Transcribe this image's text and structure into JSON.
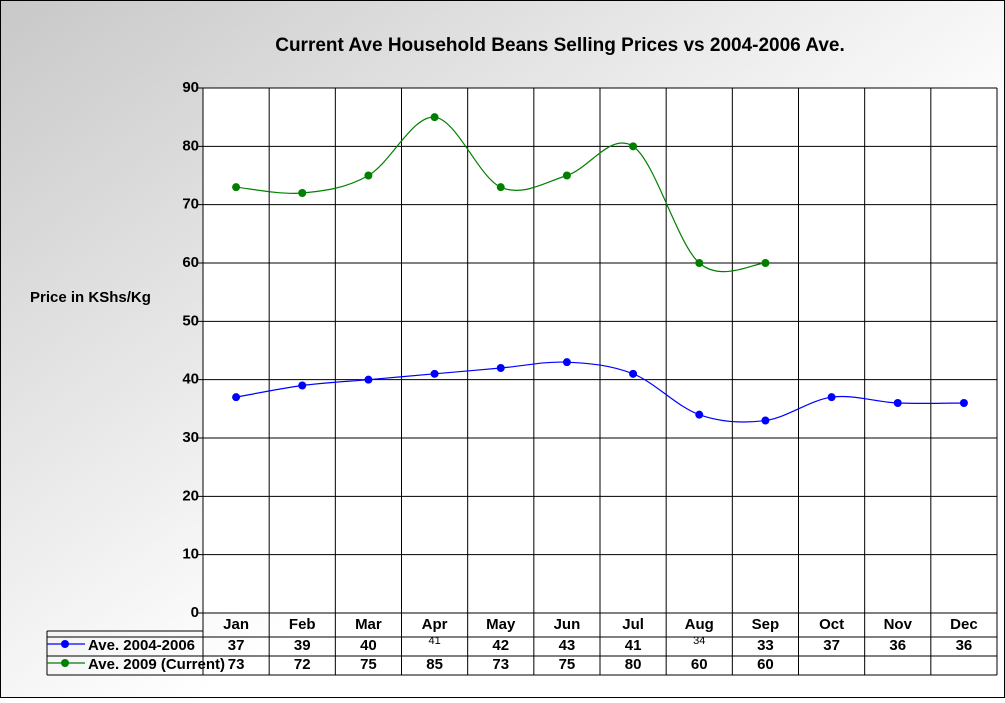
{
  "chart_data": {
    "type": "line",
    "title": "Current Ave Household Beans Selling Prices vs 2004-2006 Ave.",
    "y_label": "Price in KShs/Kg",
    "categories": [
      "Jan",
      "Feb",
      "Mar",
      "Apr",
      "May",
      "Jun",
      "Jul",
      "Aug",
      "Sep",
      "Oct",
      "Nov",
      "Dec"
    ],
    "series": [
      {
        "name": "Ave. 2004-2006",
        "color": "#0000ff",
        "values": [
          37,
          39,
          40,
          41,
          42,
          43,
          41,
          34,
          33,
          37,
          36,
          36
        ]
      },
      {
        "name": "Ave. 2009 (Current)",
        "color": "#008000",
        "values": [
          73,
          72,
          75,
          85,
          73,
          75,
          80,
          60,
          60,
          null,
          null,
          null
        ]
      }
    ],
    "ylim": [
      0,
      90
    ],
    "yticks": [
      0,
      10,
      20,
      30,
      40,
      50,
      60,
      70,
      80,
      90
    ],
    "grid": true,
    "smooth": true
  }
}
